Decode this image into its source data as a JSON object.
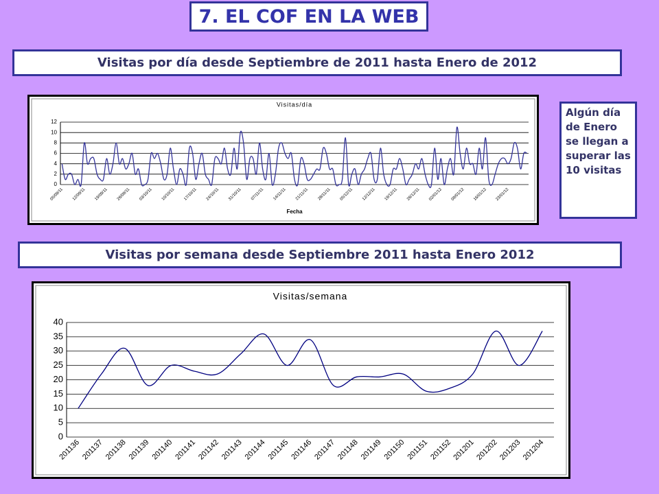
{
  "slide": {
    "title": "7. EL COF EN LA WEB",
    "banner_daily": "Visitas por día desde Septiembre de 2011 hasta Enero de 2012",
    "banner_weekly": "Visitas por semana desde Septiembre 2011 hasta Enero 2012",
    "note": "Algún día de Enero se llegan a superar las 10 visitas"
  },
  "chart_data": [
    {
      "type": "line",
      "title": "Visitas/día",
      "x_label": "Fecha",
      "color": "#333399",
      "categories": [
        "05/09/11",
        null,
        null,
        null,
        null,
        null,
        null,
        "12/09/11",
        null,
        null,
        null,
        null,
        null,
        null,
        "19/09/11",
        null,
        null,
        null,
        null,
        null,
        null,
        "26/09/11",
        null,
        null,
        null,
        null,
        null,
        null,
        "03/10/11",
        null,
        null,
        null,
        null,
        null,
        null,
        "10/10/11",
        null,
        null,
        null,
        null,
        null,
        null,
        "17/10/11",
        null,
        null,
        null,
        null,
        null,
        null,
        "24/10/11",
        null,
        null,
        null,
        null,
        null,
        null,
        "31/10/11",
        null,
        null,
        null,
        null,
        null,
        null,
        "07/11/11",
        null,
        null,
        null,
        null,
        null,
        null,
        "14/11/11",
        null,
        null,
        null,
        null,
        null,
        null,
        "21/11/11",
        null,
        null,
        null,
        null,
        null,
        null,
        "28/11/11",
        null,
        null,
        null,
        null,
        null,
        null,
        "05/12/11",
        null,
        null,
        null,
        null,
        null,
        null,
        "12/12/11",
        null,
        null,
        null,
        null,
        null,
        null,
        "19/12/11",
        null,
        null,
        null,
        null,
        null,
        null,
        "26/12/11",
        null,
        null,
        null,
        null,
        null,
        null,
        "02/01/12",
        null,
        null,
        null,
        null,
        null,
        null,
        "09/01/12",
        null,
        null,
        null,
        null,
        null,
        null,
        "16/01/12",
        null,
        null,
        null,
        null,
        null,
        null,
        "23/01/12",
        null,
        null,
        null,
        null,
        null,
        null
      ],
      "values": [
        4,
        1,
        2,
        2,
        0,
        1,
        0,
        8,
        4,
        5,
        5,
        2,
        1,
        1,
        5,
        2,
        4,
        8,
        4,
        5,
        3,
        4,
        6,
        2,
        3,
        0,
        0,
        1,
        6,
        5,
        6,
        4,
        1,
        2,
        7,
        3,
        0,
        3,
        2,
        0,
        7,
        6,
        1,
        4,
        6,
        2,
        1,
        0,
        5,
        5,
        4,
        7,
        3,
        2,
        7,
        3,
        10,
        8,
        1,
        5,
        5,
        2,
        8,
        3,
        1,
        6,
        0,
        2,
        7,
        8,
        6,
        5,
        6,
        1,
        0,
        5,
        4,
        1,
        1,
        2,
        3,
        3,
        7,
        6,
        3,
        3,
        0,
        0,
        1,
        9,
        0,
        2,
        3,
        0,
        2,
        3,
        5,
        6,
        1,
        1,
        7,
        2,
        0,
        0,
        3,
        3,
        5,
        3,
        0,
        1,
        2,
        4,
        3,
        5,
        2,
        0,
        0,
        7,
        1,
        5,
        0,
        3,
        5,
        2,
        11,
        6,
        3,
        7,
        4,
        4,
        2,
        7,
        3,
        9,
        1,
        0,
        2,
        4,
        5,
        5,
        4,
        5,
        8,
        7,
        3,
        6,
        6
      ],
      "ylim": [
        0,
        12
      ],
      "yticks": [
        0,
        2,
        4,
        6,
        8,
        10,
        12
      ],
      "grid": true
    },
    {
      "type": "line",
      "title": "Visitas/semana",
      "color": "#000080",
      "categories": [
        "201136",
        "201137",
        "201138",
        "201139",
        "201140",
        "201141",
        "201142",
        "201143",
        "201144",
        "201145",
        "201146",
        "201147",
        "201148",
        "201149",
        "201150",
        "201151",
        "201152",
        "201201",
        "201202",
        "201203",
        "201204"
      ],
      "values": [
        10,
        22,
        31,
        18,
        25,
        23,
        22,
        29,
        36,
        25,
        34,
        18,
        21,
        21,
        22,
        16,
        17,
        22,
        37,
        25,
        37
      ],
      "ylim": [
        0,
        40
      ],
      "yticks": [
        0,
        5,
        10,
        15,
        20,
        25,
        30,
        35,
        40
      ],
      "grid": true
    }
  ]
}
